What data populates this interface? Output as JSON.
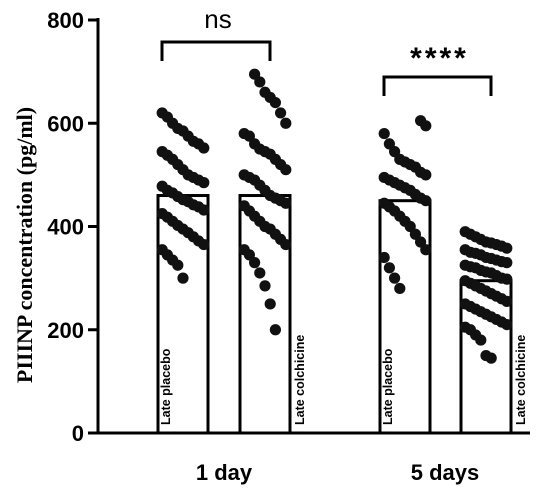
{
  "chart_data": {
    "type": "bar",
    "ylabel": "PIIINP concentration (pg/ml)",
    "xlabel": "",
    "ylim": [
      0,
      800
    ],
    "yticks": [
      0,
      200,
      400,
      600,
      800
    ],
    "groups": [
      {
        "label": "1 day",
        "significance": "ns",
        "bars": [
          {
            "name": "Late placebo",
            "value": 460,
            "points": [
              620,
              612,
              600,
              590,
              585,
              575,
              565,
              560,
              552,
              545,
              538,
              530,
              520,
              510,
              500,
              495,
              490,
              485,
              478,
              470,
              465,
              458,
              452,
              448,
              442,
              438,
              432,
              425,
              418,
              410,
              402,
              395,
              388,
              380,
              372,
              365,
              355,
              345,
              335,
              325,
              300
            ]
          },
          {
            "name": "Late colchicine",
            "value": 460,
            "points": [
              695,
              680,
              660,
              650,
              640,
              620,
              600,
              580,
              575,
              560,
              550,
              545,
              540,
              530,
              520,
              510,
              500,
              495,
              490,
              480,
              470,
              460,
              455,
              450,
              445,
              440,
              430,
              420,
              410,
              400,
              395,
              385,
              375,
              365,
              355,
              345,
              330,
              310,
              285,
              250,
              200
            ]
          }
        ]
      },
      {
        "label": "5 days",
        "significance": "****",
        "bars": [
          {
            "name": "Late placebo",
            "value": 450,
            "points": [
              605,
              595,
              580,
              560,
              545,
              530,
              525,
              520,
              515,
              505,
              500,
              495,
              490,
              485,
              480,
              475,
              470,
              462,
              455,
              450,
              445,
              438,
              430,
              420,
              410,
              400,
              385,
              370,
              355,
              340,
              320,
              300,
              280
            ]
          },
          {
            "name": "Late colchicine",
            "value": 295,
            "points": [
              390,
              385,
              380,
              375,
              370,
              368,
              365,
              362,
              358,
              355,
              350,
              348,
              345,
              340,
              338,
              335,
              332,
              330,
              325,
              322,
              320,
              315,
              312,
              310,
              305,
              300,
              298,
              295,
              290,
              285,
              280,
              275,
              270,
              265,
              260,
              255,
              250,
              245,
              240,
              235,
              230,
              225,
              220,
              215,
              210,
              205,
              200,
              190,
              180,
              150,
              145
            ]
          }
        ]
      }
    ],
    "grid": false,
    "legend": "none"
  }
}
